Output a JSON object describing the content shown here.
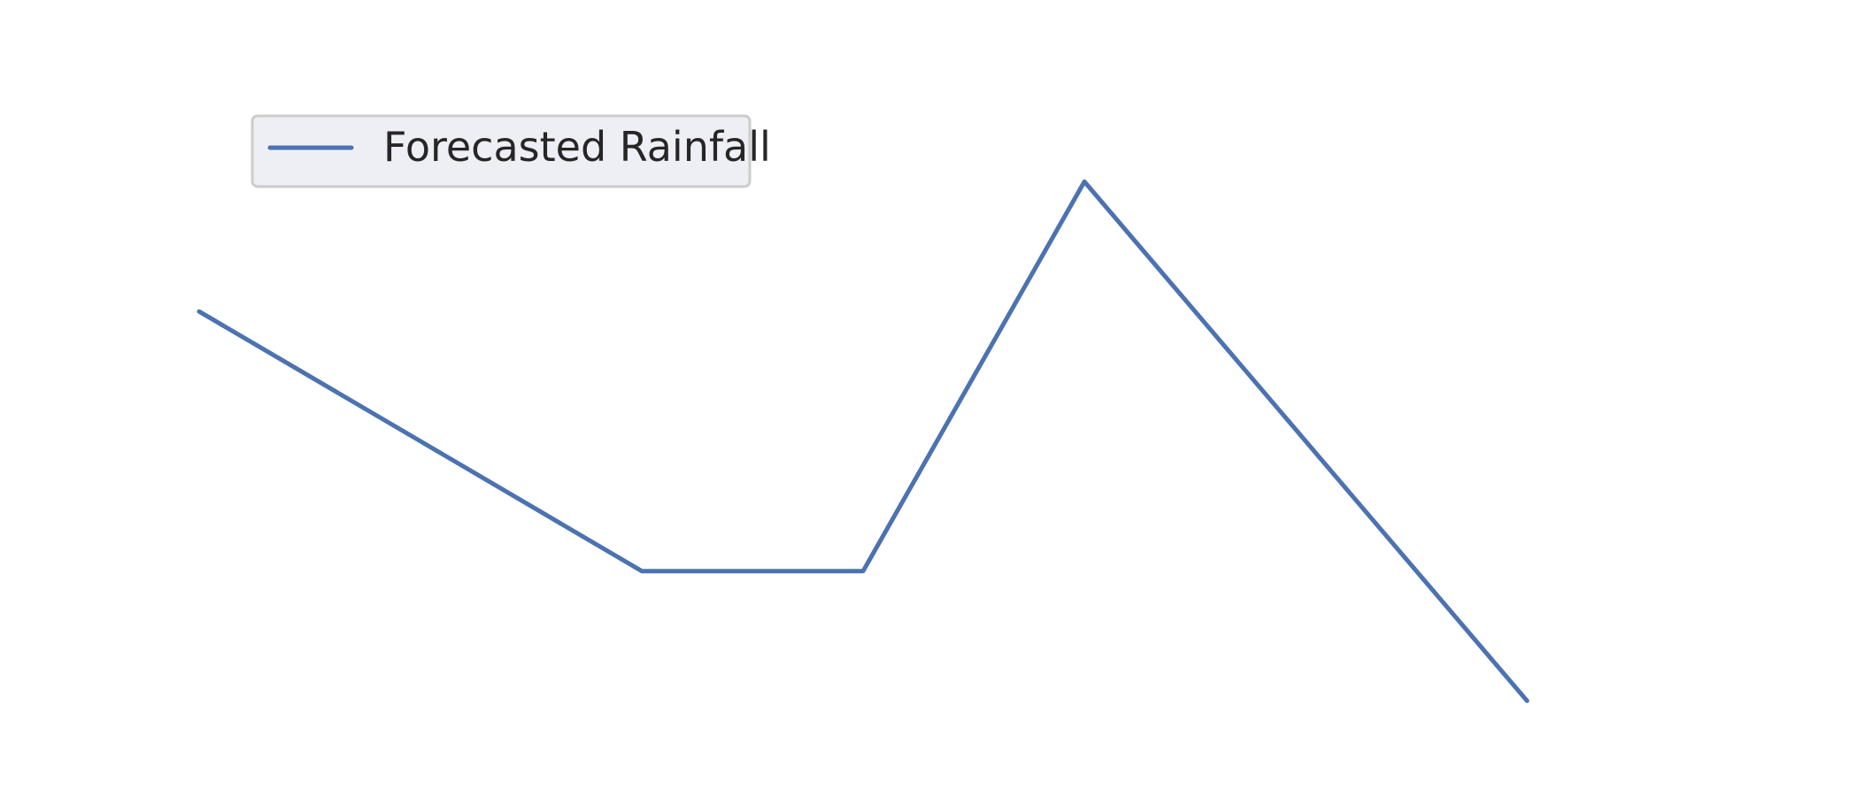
{
  "chart_data": {
    "type": "line",
    "title": "",
    "xlabel": "",
    "ylabel": "",
    "x": [
      0,
      1,
      2,
      3,
      4,
      5,
      6
    ],
    "series": [
      {
        "name": "Forecasted Rainfall",
        "color": "#4c72b0",
        "values": [
          9.0,
          6.0,
          3.0,
          3.0,
          12.0,
          6.0,
          0.0
        ]
      }
    ],
    "xlim": [
      -0.9,
      7.5
    ],
    "ylim": [
      -2.2,
      16.2
    ],
    "grid": false,
    "axes_visible": false,
    "legend": {
      "placement": "upper-left",
      "entries": [
        "Forecasted Rainfall"
      ]
    }
  }
}
